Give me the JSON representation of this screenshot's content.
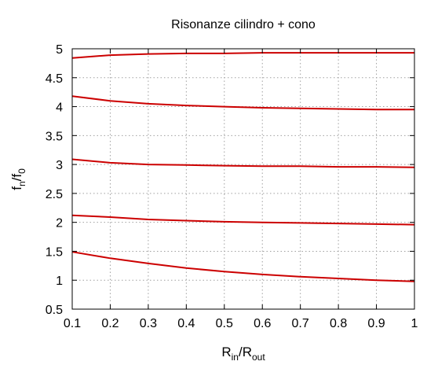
{
  "chart_data": {
    "type": "line",
    "title": "Risonanze cilindro + cono",
    "xlabel": {
      "main": "R",
      "sub1": "in",
      "mid": "/R",
      "sub2": "out"
    },
    "ylabel": {
      "main": "f",
      "sub1": "n",
      "mid": "/f",
      "sub2": "0"
    },
    "xlim": [
      0.1,
      1
    ],
    "ylim": [
      0.5,
      5
    ],
    "xticks": [
      0.1,
      0.2,
      0.3,
      0.4,
      0.5,
      0.6,
      0.7,
      0.8,
      0.9,
      1
    ],
    "xtick_labels": [
      "0.1",
      "0.2",
      "0.3",
      "0.4",
      "0.5",
      "0.6",
      "0.7",
      "0.8",
      "0.9",
      "1"
    ],
    "yticks": [
      0.5,
      1,
      1.5,
      2,
      2.5,
      3,
      3.5,
      4,
      4.5,
      5
    ],
    "ytick_labels": [
      "0.5",
      "1",
      "1.5",
      "2",
      "2.5",
      "3",
      "3.5",
      "4",
      "4.5",
      "5"
    ],
    "grid": true,
    "line_color": "#cc0000",
    "x": [
      0.1,
      0.2,
      0.3,
      0.4,
      0.5,
      0.6,
      0.7,
      0.8,
      0.9,
      1.0
    ],
    "series": [
      {
        "values": [
          1.49,
          1.38,
          1.29,
          1.21,
          1.15,
          1.1,
          1.06,
          1.03,
          1.0,
          0.98
        ]
      },
      {
        "values": [
          2.12,
          2.09,
          2.05,
          2.03,
          2.01,
          2.0,
          1.99,
          1.98,
          1.97,
          1.96
        ]
      },
      {
        "values": [
          3.09,
          3.03,
          3.0,
          2.99,
          2.98,
          2.97,
          2.97,
          2.96,
          2.96,
          2.95
        ]
      },
      {
        "values": [
          4.18,
          4.1,
          4.05,
          4.02,
          4.0,
          3.98,
          3.97,
          3.96,
          3.95,
          3.95
        ]
      },
      {
        "values": [
          4.84,
          4.89,
          4.91,
          4.92,
          4.92,
          4.93,
          4.93,
          4.93,
          4.93,
          4.93
        ]
      }
    ]
  }
}
